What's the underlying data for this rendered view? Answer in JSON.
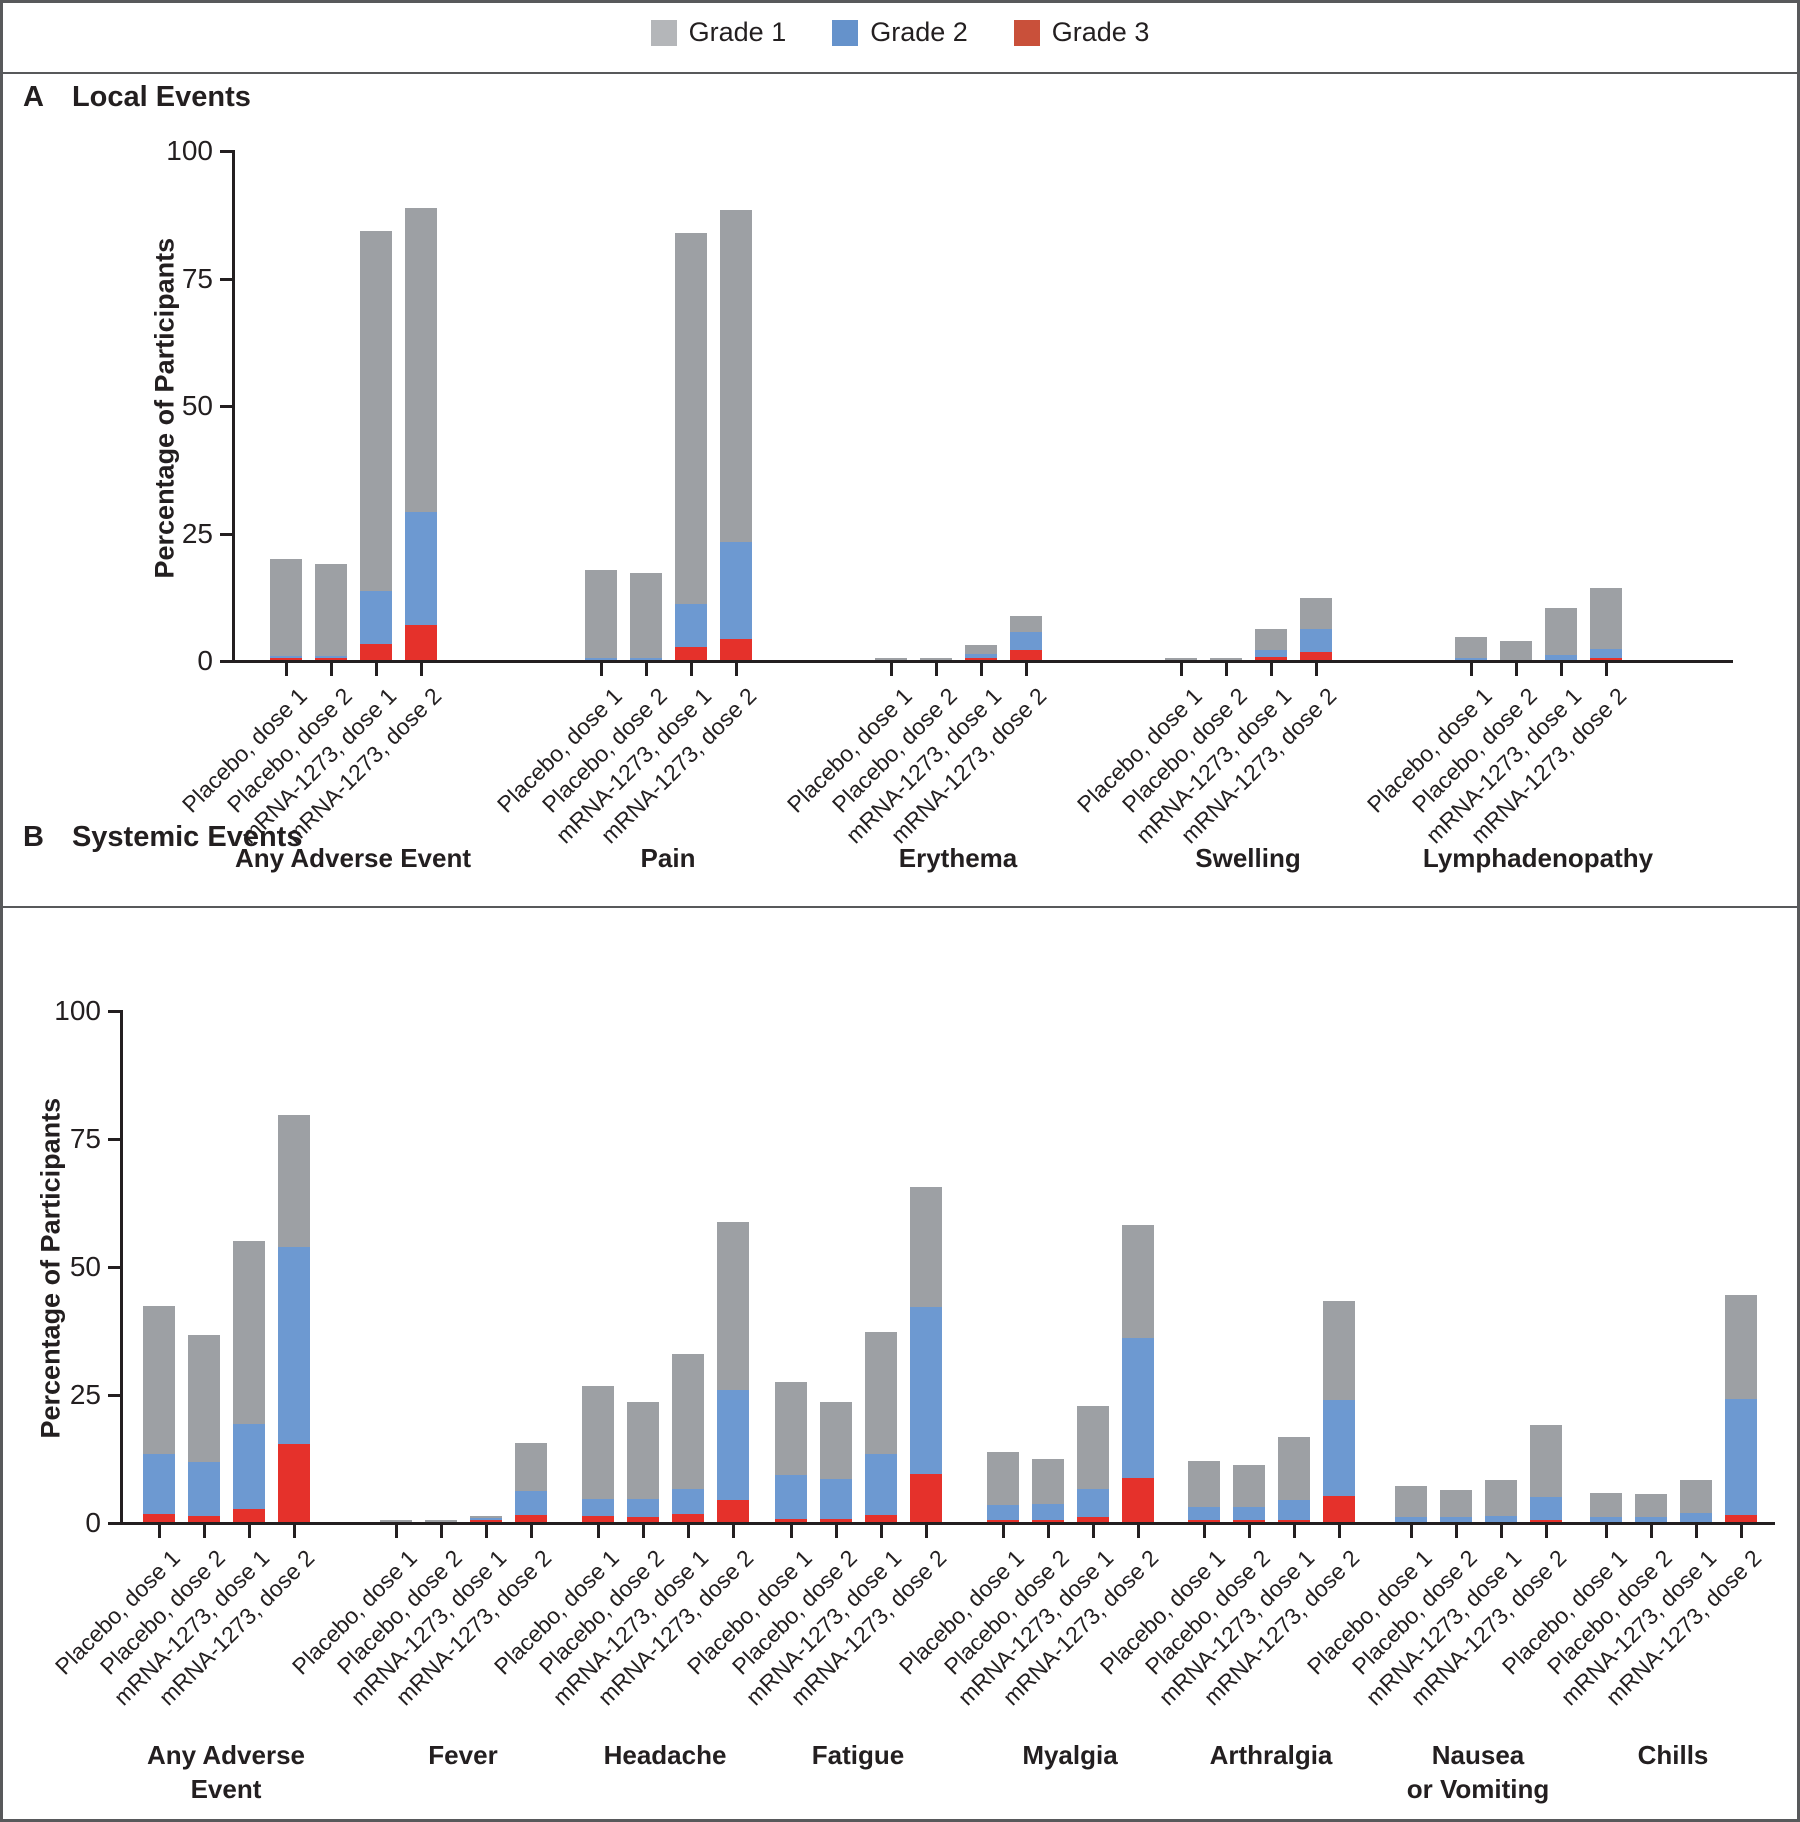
{
  "figure": {
    "legend": [
      {
        "label": "Grade 1",
        "swatch_color": "#b4b6b9",
        "bar_color": "#9da0a4"
      },
      {
        "label": "Grade 2",
        "swatch_color": "#6592cb",
        "bar_color": "#6d99d1"
      },
      {
        "label": "Grade 3",
        "swatch_color": "#c9503a",
        "bar_color": "#e5312b"
      }
    ],
    "text_color": "#231f20",
    "frame_color": "#58595b"
  },
  "chart_data": [
    {
      "type": "bar",
      "stacked": true,
      "panel_letter": "A",
      "title": "Local Events",
      "ylabel": "Percentage of Participants",
      "xlabel": "",
      "ylim": [
        0,
        100
      ],
      "yticks": [
        0,
        25,
        50,
        75,
        100
      ],
      "grid": false,
      "legend_position": "top",
      "value_order": [
        "grade1",
        "grade2",
        "grade3"
      ],
      "bar_labels": [
        "Placebo, dose 1",
        "Placebo, dose 2",
        "mRNA-1273, dose 1",
        "mRNA-1273, dose 2"
      ],
      "groups": [
        {
          "name": "Any Adverse Event",
          "bars": [
            [
              19.0,
              0.4,
              0.4
            ],
            [
              18.0,
              0.4,
              0.4
            ],
            [
              70.7,
              10.3,
              3.2
            ],
            [
              59.6,
              22.2,
              6.8
            ]
          ]
        },
        {
          "name": "Pain",
          "bars": [
            [
              17.2,
              0.4,
              0.0
            ],
            [
              16.6,
              0.4,
              0.0
            ],
            [
              72.9,
              8.4,
              2.5
            ],
            [
              65.2,
              19.0,
              4.1
            ]
          ]
        },
        {
          "name": "Erythema",
          "bars": [
            [
              0.4,
              0.0,
              0.0
            ],
            [
              0.4,
              0.0,
              0.0
            ],
            [
              1.8,
              0.8,
              0.2
            ],
            [
              3.1,
              3.6,
              1.9
            ]
          ]
        },
        {
          "name": "Swelling",
          "bars": [
            [
              0.4,
              0.0,
              0.0
            ],
            [
              0.3,
              0.0,
              0.0
            ],
            [
              4.1,
              1.5,
              0.5
            ],
            [
              6.2,
              4.4,
              1.6
            ]
          ]
        },
        {
          "name": "Lymphadenopathy",
          "bars": [
            [
              4.1,
              0.4,
              0.0
            ],
            [
              3.7,
              0.0,
              0.0
            ],
            [
              9.2,
              1.0,
              0.0
            ],
            [
              12.0,
              1.8,
              0.4
            ]
          ]
        }
      ]
    },
    {
      "type": "bar",
      "stacked": true,
      "panel_letter": "B",
      "title": "Systemic Events",
      "ylabel": "Percentage of Participants",
      "xlabel": "",
      "ylim": [
        0,
        100
      ],
      "yticks": [
        0,
        25,
        50,
        75,
        100
      ],
      "grid": false,
      "legend_position": "top",
      "value_order": [
        "grade1",
        "grade2",
        "grade3"
      ],
      "bar_labels": [
        "Placebo, dose 1",
        "Placebo, dose 2",
        "mRNA-1273, dose 1",
        "mRNA-1273, dose 2"
      ],
      "groups": [
        {
          "name": "Any Adverse\nEvent",
          "bars": [
            [
              29.0,
              11.7,
              1.5
            ],
            [
              24.8,
              10.5,
              1.2
            ],
            [
              35.8,
              16.5,
              2.6
            ],
            [
              25.6,
              38.5,
              15.3
            ]
          ]
        },
        {
          "name": "Fever",
          "bars": [
            [
              0.3,
              0.0,
              0.0
            ],
            [
              0.3,
              0.0,
              0.0
            ],
            [
              0.4,
              0.3,
              0.2
            ],
            [
              9.4,
              4.7,
              1.4
            ]
          ]
        },
        {
          "name": "Headache",
          "bars": [
            [
              22.1,
              3.4,
              1.1
            ],
            [
              18.9,
              3.5,
              1.0
            ],
            [
              26.3,
              4.9,
              1.6
            ],
            [
              32.9,
              21.5,
              4.2
            ]
          ]
        },
        {
          "name": "Fatigue",
          "bars": [
            [
              18.2,
              8.6,
              0.6
            ],
            [
              15.0,
              7.9,
              0.5
            ],
            [
              23.9,
              11.9,
              1.4
            ],
            [
              23.5,
              32.7,
              9.3
            ]
          ]
        },
        {
          "name": "Myalgia",
          "bars": [
            [
              10.3,
              2.9,
              0.3
            ],
            [
              8.9,
              3.1,
              0.3
            ],
            [
              16.2,
              5.6,
              0.9
            ],
            [
              22.1,
              27.4,
              8.6
            ]
          ]
        },
        {
          "name": "Arthralgia",
          "bars": [
            [
              8.9,
              2.6,
              0.2
            ],
            [
              8.1,
              2.6,
              0.2
            ],
            [
              12.4,
              3.9,
              0.3
            ],
            [
              19.4,
              18.8,
              5.0
            ]
          ]
        },
        {
          "name": "Nausea\nor Vomiting",
          "bars": [
            [
              6.1,
              0.9,
              0.0
            ],
            [
              5.4,
              0.9,
              0.0
            ],
            [
              7.2,
              1.1,
              0.0
            ],
            [
              14.1,
              4.4,
              0.2
            ]
          ]
        },
        {
          "name": "Chills",
          "bars": [
            [
              4.8,
              0.9,
              0.0
            ],
            [
              4.5,
              0.9,
              0.0
            ],
            [
              6.5,
              1.8,
              0.0
            ],
            [
              20.2,
              22.8,
              1.3
            ]
          ]
        }
      ]
    }
  ]
}
